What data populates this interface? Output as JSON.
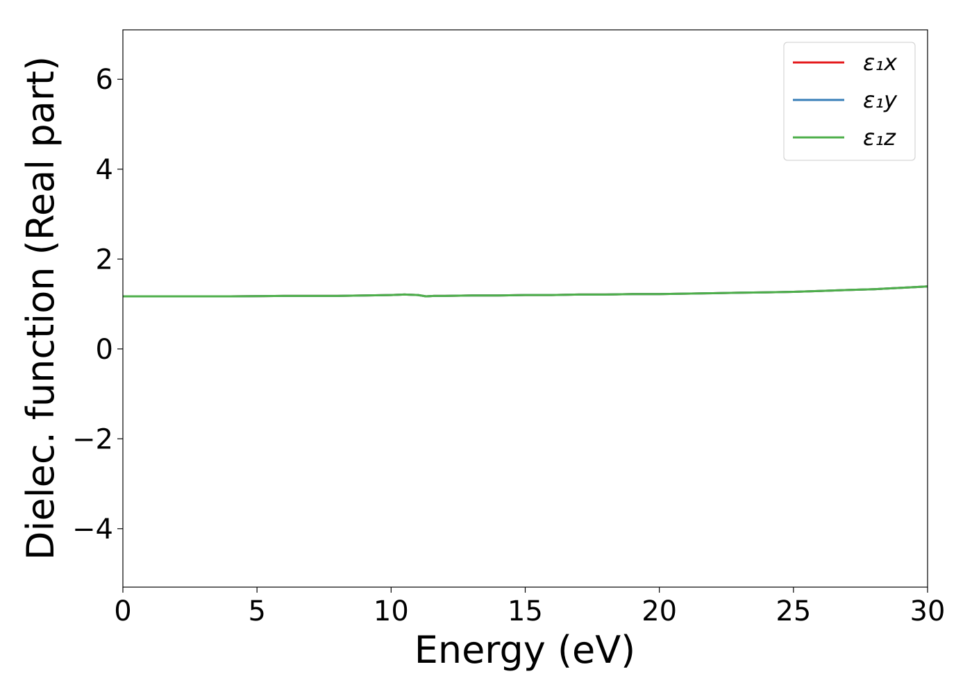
{
  "chart_data": {
    "type": "line",
    "title": "",
    "xlabel": "Energy (eV)",
    "ylabel": "Dielec. function (Real part)",
    "xlim": [
      0,
      30
    ],
    "ylim": [
      -5.3,
      7.1
    ],
    "xticks": [
      0,
      5,
      10,
      15,
      20,
      25,
      30
    ],
    "xtick_labels": [
      "0",
      "5",
      "10",
      "15",
      "20",
      "25",
      "30"
    ],
    "yticks": [
      -4,
      -2,
      0,
      2,
      4,
      6
    ],
    "ytick_labels": [
      "−4",
      "−2",
      "0",
      "2",
      "4",
      "6"
    ],
    "grid": false,
    "legend_position": "top-right",
    "series": [
      {
        "name": "ε₁x",
        "color": "#e41a1c",
        "x": [
          0,
          2,
          4,
          6,
          8,
          9,
          10,
          10.5,
          11,
          11.3,
          11.6,
          12,
          13,
          14,
          15,
          16,
          17,
          18,
          19,
          20,
          21,
          22,
          23,
          24,
          25,
          26,
          27,
          28,
          29,
          30
        ],
        "y": [
          1.17,
          1.17,
          1.17,
          1.18,
          1.18,
          1.19,
          1.2,
          1.21,
          1.2,
          1.17,
          1.18,
          1.18,
          1.19,
          1.19,
          1.2,
          1.2,
          1.21,
          1.21,
          1.22,
          1.22,
          1.23,
          1.24,
          1.25,
          1.26,
          1.27,
          1.29,
          1.31,
          1.33,
          1.36,
          1.39
        ]
      },
      {
        "name": "ε₁y",
        "color": "#377eb8",
        "x": [
          0,
          2,
          4,
          6,
          8,
          9,
          10,
          10.5,
          11,
          11.3,
          11.6,
          12,
          13,
          14,
          15,
          16,
          17,
          18,
          19,
          20,
          21,
          22,
          23,
          24,
          25,
          26,
          27,
          28,
          29,
          30
        ],
        "y": [
          1.17,
          1.17,
          1.17,
          1.18,
          1.18,
          1.19,
          1.2,
          1.21,
          1.2,
          1.17,
          1.18,
          1.18,
          1.19,
          1.19,
          1.2,
          1.2,
          1.21,
          1.21,
          1.22,
          1.22,
          1.23,
          1.24,
          1.25,
          1.26,
          1.27,
          1.29,
          1.31,
          1.33,
          1.36,
          1.39
        ]
      },
      {
        "name": "ε₁z",
        "color": "#4daf4a",
        "x": [
          0,
          2,
          4,
          6,
          8,
          9,
          10,
          10.5,
          11,
          11.3,
          11.6,
          12,
          13,
          14,
          15,
          16,
          17,
          18,
          19,
          20,
          21,
          22,
          23,
          24,
          25,
          26,
          27,
          28,
          29,
          30
        ],
        "y": [
          1.17,
          1.17,
          1.17,
          1.18,
          1.18,
          1.19,
          1.2,
          1.21,
          1.2,
          1.17,
          1.18,
          1.18,
          1.19,
          1.19,
          1.2,
          1.2,
          1.21,
          1.21,
          1.22,
          1.22,
          1.23,
          1.24,
          1.25,
          1.26,
          1.27,
          1.29,
          1.31,
          1.33,
          1.36,
          1.39
        ]
      }
    ]
  }
}
